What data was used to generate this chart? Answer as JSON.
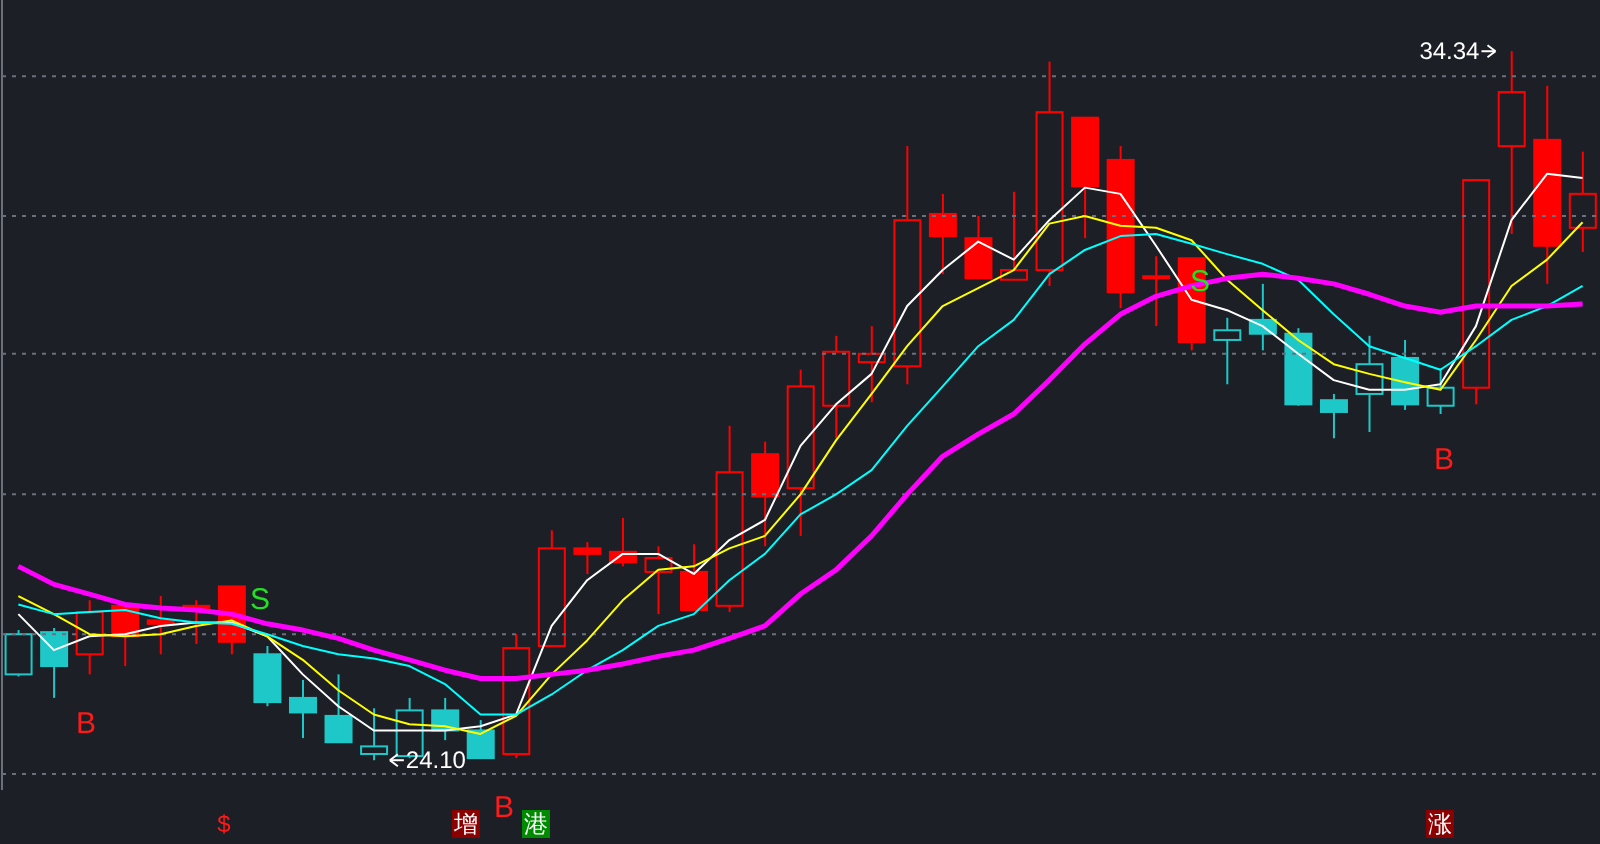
{
  "chart_data": {
    "type": "candlestick",
    "categories": [
      null,
      null,
      null,
      null,
      null,
      null,
      null,
      null,
      null,
      null,
      null,
      null,
      null,
      null,
      null,
      null,
      null,
      null,
      null,
      null,
      null,
      null,
      null,
      null,
      null,
      null,
      null,
      null,
      null,
      null,
      null,
      null,
      null,
      null,
      null,
      null,
      null,
      null,
      null,
      null,
      null,
      null,
      null,
      null,
      null
    ],
    "ohlc": [
      [
        25.34,
        25.98,
        25.31,
        25.92
      ],
      [
        25.95,
        26.01,
        25.0,
        25.46
      ],
      [
        25.63,
        26.41,
        25.34,
        26.24
      ],
      [
        26.33,
        26.38,
        25.46,
        25.89
      ],
      [
        26.12,
        26.47,
        25.63,
        26.07
      ],
      [
        26.33,
        26.41,
        25.78,
        26.27
      ],
      [
        26.61,
        26.61,
        25.63,
        25.81
      ],
      [
        25.63,
        25.75,
        24.88,
        24.94
      ],
      [
        25.0,
        25.26,
        24.42,
        24.79
      ],
      [
        24.74,
        25.34,
        24.36,
        24.36
      ],
      [
        24.19,
        24.85,
        24.1,
        24.3
      ],
      [
        24.16,
        25.0,
        24.13,
        24.82
      ],
      [
        24.82,
        25.0,
        24.39,
        24.53
      ],
      [
        24.53,
        24.68,
        24.13,
        24.13
      ],
      [
        24.19,
        25.92,
        24.13,
        25.72
      ],
      [
        25.75,
        27.42,
        25.75,
        27.16
      ],
      [
        27.16,
        27.25,
        26.79,
        27.08
      ],
      [
        27.11,
        27.6,
        26.9,
        26.96
      ],
      [
        26.82,
        27.19,
        26.21,
        27.02
      ],
      [
        26.82,
        27.22,
        26.27,
        26.27
      ],
      [
        26.33,
        28.93,
        26.24,
        28.26
      ],
      [
        28.52,
        28.7,
        27.19,
        27.91
      ],
      [
        28.03,
        29.74,
        27.34,
        29.5
      ],
      [
        29.22,
        30.23,
        28.75,
        30.0
      ],
      [
        29.85,
        30.37,
        29.27,
        29.97
      ],
      [
        29.79,
        32.97,
        29.53,
        31.9
      ],
      [
        31.99,
        32.28,
        31.12,
        31.67
      ],
      [
        31.64,
        31.96,
        31.06,
        31.06
      ],
      [
        31.04,
        32.31,
        31.04,
        31.18
      ],
      [
        31.18,
        34.19,
        30.95,
        33.46
      ],
      [
        33.38,
        33.38,
        31.64,
        32.39
      ],
      [
        32.77,
        32.97,
        30.63,
        30.86
      ],
      [
        31.09,
        31.38,
        30.37,
        31.08
      ],
      [
        31.35,
        31.35,
        30.02,
        30.14
      ],
      [
        30.17,
        30.49,
        29.53,
        30.31
      ],
      [
        30.46,
        30.98,
        30.02,
        30.26
      ],
      [
        30.26,
        30.34,
        29.22,
        29.24
      ],
      [
        29.3,
        29.39,
        28.75,
        29.13
      ],
      [
        29.39,
        30.23,
        28.84,
        29.82
      ],
      [
        29.91,
        30.17,
        29.16,
        29.24
      ],
      [
        29.22,
        29.76,
        29.1,
        29.48
      ],
      [
        29.48,
        32.48,
        29.24,
        32.48
      ],
      [
        32.97,
        34.34,
        31.7,
        33.75
      ],
      [
        33.06,
        33.84,
        30.98,
        31.53
      ],
      [
        31.79,
        32.89,
        31.44,
        32.28
      ]
    ],
    "colors": [
      "#1fc8c8",
      "#1fc8c8",
      "#ff0000",
      "#ff0000",
      "#ff0000",
      "#ff0000",
      "#ff0000",
      "#1fc8c8",
      "#1fc8c8",
      "#1fc8c8",
      "#1fc8c8",
      "#1fc8c8",
      "#1fc8c8",
      "#1fc8c8",
      "#ff0000",
      "#ff0000",
      "#ff0000",
      "#ff0000",
      "#ff0000",
      "#ff0000",
      "#ff0000",
      "#ff0000",
      "#ff0000",
      "#ff0000",
      "#ff0000",
      "#ff0000",
      "#ff0000",
      "#ff0000",
      "#ff0000",
      "#ff0000",
      "#ff0000",
      "#ff0000",
      "#ff0000",
      "#ff0000",
      "#1fc8c8",
      "#1fc8c8",
      "#1fc8c8",
      "#1fc8c8",
      "#1fc8c8",
      "#1fc8c8",
      "#1fc8c8",
      "#ff0000",
      "#ff0000",
      "#ff0000",
      "#ff0000"
    ],
    "series": [
      {
        "type": "line",
        "color": "#ffffff",
        "values": [
          26.21,
          25.69,
          25.89,
          25.92,
          26.04,
          26.09,
          26.09,
          25.89,
          25.34,
          24.88,
          24.53,
          24.53,
          24.53,
          24.59,
          24.76,
          26.04,
          26.7,
          27.08,
          27.08,
          26.79,
          27.28,
          27.57,
          28.64,
          29.24,
          29.68,
          30.66,
          31.18,
          31.59,
          31.33,
          31.9,
          32.37,
          32.28,
          31.53,
          30.75,
          30.6,
          30.37,
          29.97,
          29.59,
          29.45,
          29.45,
          29.53,
          30.37,
          31.9,
          32.57,
          32.51
        ]
      },
      {
        "type": "line",
        "color": "#ffff00",
        "values": [
          26.47,
          26.21,
          25.92,
          25.89,
          25.92,
          26.04,
          26.12,
          25.89,
          25.55,
          25.11,
          24.76,
          24.62,
          24.59,
          24.48,
          24.74,
          25.34,
          25.83,
          26.41,
          26.85,
          26.9,
          27.16,
          27.34,
          27.94,
          28.72,
          29.39,
          30.08,
          30.66,
          30.92,
          31.18,
          31.85,
          31.96,
          31.82,
          31.79,
          31.61,
          31.04,
          30.6,
          30.17,
          29.82,
          29.68,
          29.56,
          29.45,
          30.17,
          30.95,
          31.33,
          31.87
        ]
      },
      {
        "type": "line",
        "color": "#00ffff",
        "values": [
          26.35,
          26.21,
          26.24,
          26.27,
          26.15,
          26.09,
          26.07,
          25.92,
          25.75,
          25.63,
          25.57,
          25.46,
          25.2,
          24.76,
          24.76,
          25.05,
          25.4,
          25.69,
          26.04,
          26.21,
          26.7,
          27.08,
          27.65,
          27.94,
          28.29,
          28.93,
          29.5,
          30.08,
          30.46,
          31.12,
          31.47,
          31.67,
          31.7,
          31.56,
          31.41,
          31.27,
          31.04,
          30.54,
          30.08,
          29.91,
          29.74,
          30.08,
          30.46,
          30.66,
          30.95
        ]
      },
      {
        "type": "line",
        "color": "#ff00ff",
        "values": [
          26.9,
          26.64,
          26.5,
          26.35,
          26.3,
          26.27,
          26.21,
          26.07,
          25.98,
          25.86,
          25.69,
          25.55,
          25.4,
          25.28,
          25.28,
          25.34,
          25.4,
          25.49,
          25.6,
          25.69,
          25.86,
          26.04,
          26.5,
          26.85,
          27.34,
          27.94,
          28.49,
          28.81,
          29.1,
          29.59,
          30.11,
          30.54,
          30.8,
          30.95,
          31.06,
          31.12,
          31.06,
          30.98,
          30.83,
          30.66,
          30.57,
          30.66,
          30.66,
          30.66,
          30.69
        ]
      }
    ],
    "yticks": [
      {
        "value": 23.9,
        "label": null
      },
      {
        "value": 25.92,
        "label": null
      },
      {
        "value": 27.94,
        "label": null
      },
      {
        "value": 29.97,
        "label": null
      },
      {
        "value": 31.96,
        "label": null
      },
      {
        "value": 33.98,
        "label": null
      }
    ],
    "ylim": [
      23.67,
      35.08
    ],
    "grid": "y",
    "tick_labels": false,
    "annotations": [
      "B",
      "S",
      "B",
      "S",
      "B",
      "$",
      "增",
      "港",
      "涨",
      "24.10",
      "34.34"
    ]
  }
}
